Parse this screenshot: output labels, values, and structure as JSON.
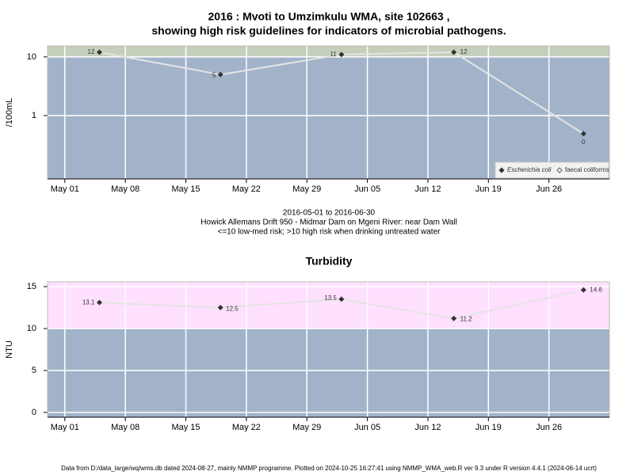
{
  "chart_data": [
    {
      "type": "line",
      "title": [
        "2016 : Mvoti to Umzimkulu WMA, site 102663 ,",
        "showing high risk guidelines for indicators of microbial pathogens."
      ],
      "ylabel": "/100mL",
      "log_scale": true,
      "threshold": 10,
      "band_colors": [
        "#a2b3c9",
        "#c5d0bc"
      ],
      "grid": true,
      "legend": "bottom-right",
      "x": [
        "2016-05-05",
        "2016-05-19",
        "2016-06-02",
        "2016-06-15",
        "2016-06-30"
      ],
      "series": [
        {
          "name": "Escherichia coli",
          "color": "#333333",
          "values": [
            12,
            5,
            11,
            12,
            0.49
          ],
          "value_labels": [
            "12",
            "5",
            "11",
            "12",
            "0"
          ]
        },
        {
          "name": "faecal coliforms",
          "color": "#333333",
          "values": [
            null,
            null,
            null,
            null,
            null
          ]
        }
      ],
      "xlim": [
        "2016-04-29",
        "2016-07-03"
      ],
      "xticks": [
        {
          "value": "2016-05-01",
          "label": "May 01"
        },
        {
          "value": "2016-05-08",
          "label": "May 08"
        },
        {
          "value": "2016-05-15",
          "label": "May 15"
        },
        {
          "value": "2016-05-22",
          "label": "May 22"
        },
        {
          "value": "2016-05-29",
          "label": "May 29"
        },
        {
          "value": "2016-06-05",
          "label": "Jun 05"
        },
        {
          "value": "2016-06-12",
          "label": "Jun 12"
        },
        {
          "value": "2016-06-19",
          "label": "Jun 19"
        },
        {
          "value": "2016-06-26",
          "label": "Jun 26"
        }
      ],
      "ylim": [
        0.083,
        15.4
      ],
      "yticks": [
        1,
        10
      ],
      "notes": [
        "2016-05-01 to 2016-06-30",
        "Howick Allemans Drift 950 - Midmar Dam on Mgeni River: near Dam Wall",
        "<=10 low-med risk; >10 high risk when drinking untreated water"
      ]
    },
    {
      "type": "line",
      "title": [
        "Turbidity"
      ],
      "ylabel": "NTU",
      "log_scale": false,
      "threshold": 10,
      "band_colors": [
        "#a2b3c9",
        "#ffe0ff"
      ],
      "grid": true,
      "x": [
        "2016-05-05",
        "2016-05-19",
        "2016-06-02",
        "2016-06-15",
        "2016-06-30"
      ],
      "series": [
        {
          "name": null,
          "color": "#333333",
          "values": [
            13.1,
            12.5,
            13.5,
            11.2,
            14.6
          ]
        }
      ],
      "xlim": [
        "2016-04-29",
        "2016-07-03"
      ],
      "xticks": [
        {
          "value": "2016-05-01",
          "label": "May 01"
        },
        {
          "value": "2016-05-08",
          "label": "May 08"
        },
        {
          "value": "2016-05-15",
          "label": "May 15"
        },
        {
          "value": "2016-05-22",
          "label": "May 22"
        },
        {
          "value": "2016-05-29",
          "label": "May 29"
        },
        {
          "value": "2016-06-05",
          "label": "Jun 05"
        },
        {
          "value": "2016-06-12",
          "label": "Jun 12"
        },
        {
          "value": "2016-06-19",
          "label": "Jun 19"
        },
        {
          "value": "2016-06-26",
          "label": "Jun 26"
        }
      ],
      "ylim": [
        -0.57,
        15.57
      ],
      "yticks": [
        0,
        5,
        10,
        15
      ]
    }
  ],
  "footer": "Data from D:/data_large/wq/wms.db dated 2024-08-27, mainly NMMP programme. Plotted on 2024-10-25 16:27:41 using NMMP_WMA_web.R ver 9.3 under R version 4.4.1 (2024-06-14 ucrt)"
}
